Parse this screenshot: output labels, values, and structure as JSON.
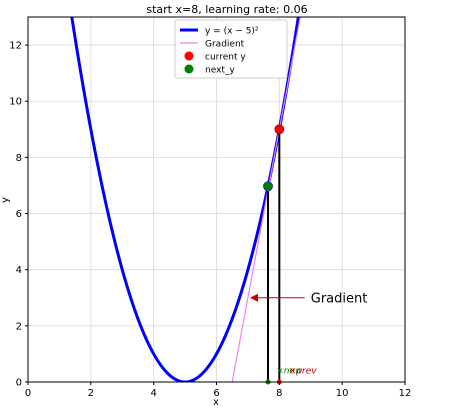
{
  "chart_data": {
    "type": "line",
    "title": "start x=8, learning rate: 0.06",
    "xlabel": "x",
    "ylabel": "y",
    "xlim": [
      0,
      12
    ],
    "ylim": [
      0,
      13
    ],
    "xticks": [
      0,
      2,
      4,
      6,
      8,
      10,
      12
    ],
    "yticks": [
      0,
      2,
      4,
      6,
      8,
      10,
      12
    ],
    "grid": true,
    "legend": {
      "placement": "top-center",
      "entries": [
        {
          "label": "y = (x − 5)²",
          "color": "#0000ff",
          "kind": "thick-line"
        },
        {
          "label": "Gradient",
          "color": "#ee82ee",
          "kind": "line"
        },
        {
          "label": "current y",
          "color": "#ff0000",
          "kind": "marker"
        },
        {
          "label": "next_y",
          "color": "#008000",
          "kind": "marker"
        }
      ]
    },
    "series": [
      {
        "kind": "function",
        "formula": "(x-5)^2",
        "x_range": [
          0,
          12
        ],
        "color": "#0000ff"
      },
      {
        "kind": "tangent",
        "at_x": 8,
        "slope": 6,
        "color": "#ee82ee"
      }
    ],
    "points": [
      {
        "role": "current",
        "x": 8,
        "y": 9,
        "color": "#ff0000"
      },
      {
        "role": "next",
        "x": 7.64,
        "y": 6.97,
        "color": "#008000"
      }
    ],
    "annotations": [
      {
        "text": "Gradient",
        "x": 9.0,
        "y": 3.0,
        "arrow_to": [
          7.1,
          3.0
        ],
        "arrow_color": "#cc0000"
      },
      {
        "text": "new",
        "x": 7.9,
        "y": 0.3,
        "color": "#008000"
      },
      {
        "text": "prev",
        "x": 8.3,
        "y": 0.3,
        "color": "#cc0000"
      }
    ]
  }
}
